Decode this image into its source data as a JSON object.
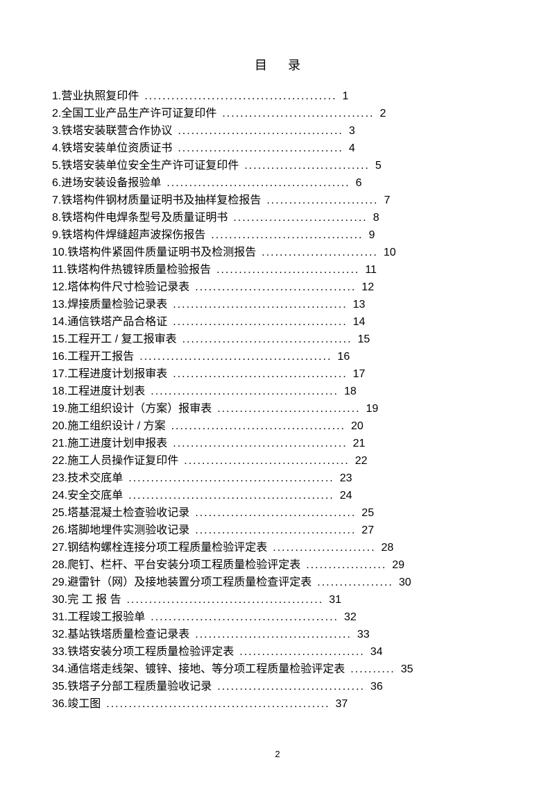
{
  "title": "目录",
  "pageNumber": "2",
  "items": [
    {
      "num": "1.",
      "label": "营业执照复印件",
      "dots": "...........................................",
      "page": "1"
    },
    {
      "num": "2.",
      "label": "全国工业产品生产许可证复印件",
      "dots": "..................................",
      "page": "2"
    },
    {
      "num": "3.",
      "label": "铁塔安装联营合作协议",
      "dots": ".....................................",
      "page": "3"
    },
    {
      "num": "4.",
      "label": "铁塔安装单位资质证书",
      "dots": ".....................................",
      "page": "4"
    },
    {
      "num": "5.",
      "label": "铁塔安装单位安全生产许可证复印件",
      "dots": "............................",
      "page": "5"
    },
    {
      "num": "6.",
      "label": "进场安装设备报验单",
      "dots": ".........................................",
      "page": "6"
    },
    {
      "num": "7.",
      "label": "铁塔构件钢材质量证明书及抽样复检报告",
      "dots": ".........................",
      "page": "7"
    },
    {
      "num": "8.",
      "label": "铁塔构件电焊条型号及质量证明书",
      "dots": "..............................",
      "page": "8"
    },
    {
      "num": "9.",
      "label": "铁塔构件焊缝超声波探伤报告",
      "dots": "..................................",
      "page": "9"
    },
    {
      "num": "10.",
      "label": "铁塔构件紧固件质量证明书及检测报告",
      "dots": "..........................",
      "page": "10"
    },
    {
      "num": "11.",
      "label": "铁塔构件热镀锌质量检验报告",
      "dots": "................................",
      "page": "11"
    },
    {
      "num": "12.",
      "label": "塔体构件尺寸检验记录表",
      "dots": "....................................",
      "page": "12"
    },
    {
      "num": "13.",
      "label": "焊接质量检验记录表",
      "dots": ".......................................",
      "page": "13"
    },
    {
      "num": "14.",
      "label": "通信铁塔产品合格证",
      "dots": ".......................................",
      "page": "14"
    },
    {
      "num": "15.",
      "label": "工程开工 / 复工报审表",
      "dots": "......................................",
      "page": "15"
    },
    {
      "num": "16.",
      "label": "工程开工报告",
      "dots": "...........................................",
      "page": "16"
    },
    {
      "num": "17.",
      "label": "工程进度计划报审表",
      "dots": ".......................................",
      "page": "17"
    },
    {
      "num": "18.",
      "label": "工程进度计划表",
      "dots": "..........................................",
      "page": "18"
    },
    {
      "num": "19.",
      "label": "施工组织设计（方案）报审表",
      "dots": "................................",
      "page": "19"
    },
    {
      "num": "20.",
      "label": "施工组织设计 / 方案",
      "dots": ".......................................",
      "page": "20"
    },
    {
      "num": "21.",
      "label": "施工进度计划申报表",
      "dots": ".......................................",
      "page": "21"
    },
    {
      "num": "22.",
      "label": "施工人员操作证复印件",
      "dots": ".....................................",
      "page": "22"
    },
    {
      "num": "23.",
      "label": "技术交底单",
      "dots": "..............................................",
      "page": "23"
    },
    {
      "num": "24.",
      "label": "安全交底单",
      "dots": "..............................................",
      "page": "24"
    },
    {
      "num": "25.",
      "label": "塔基混凝土检查验收记录",
      "dots": "....................................",
      "page": "25"
    },
    {
      "num": "26.",
      "label": "塔脚地埋件实测验收记录",
      "dots": "....................................",
      "page": "27"
    },
    {
      "num": "27.",
      "label": "钢结构螺栓连接分项工程质量检验评定表",
      "dots": ".......................",
      "page": "28"
    },
    {
      "num": "28.",
      "label": "爬钉、栏杆、平台安装分项工程质量检验评定表",
      "dots": "..................",
      "page": "29"
    },
    {
      "num": "29.",
      "label": "避雷针（网）及接地装置分项工程质量检查评定表",
      "dots": ".................",
      "page": "30"
    },
    {
      "num": "30.",
      "label": "  完 工 报 告",
      "dots": "............................................",
      "page": "31"
    },
    {
      "num": "31.",
      "label": "工程竣工报验单",
      "dots": "..........................................",
      "page": "32"
    },
    {
      "num": "32.",
      "label": "基站铁塔质量检查记录表",
      "dots": "...................................",
      "page": "33"
    },
    {
      "num": "33.",
      "label": "铁塔安装分项工程质量检验评定表",
      "dots": "............................",
      "page": "34"
    },
    {
      "num": "34.",
      "label": "通信塔走线架、镀锌、接地、等分项工程质量检验评定表",
      "dots": "..........",
      "page": "35"
    },
    {
      "num": "35.",
      "label": "铁塔子分部工程质量验收记录",
      "dots": ".................................",
      "page": "36"
    },
    {
      "num": "36.",
      "label": "竣工图",
      "dots": "..................................................",
      "page": "37"
    }
  ]
}
